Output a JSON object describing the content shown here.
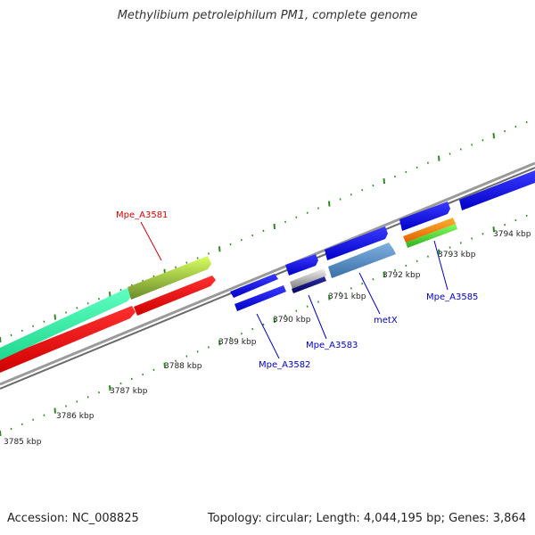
{
  "title": "Methylibium petroleiphilum PM1, complete genome",
  "accession": "Accession: NC_008825",
  "summary": "Topology: circular; Length: 4,044,195 bp; Genes: 3,864",
  "colors": {
    "backbone": "#8a8a8a",
    "tick": "#2e8b22",
    "forward_gene": "#0000ee",
    "reverse_gene": "#0000ee",
    "red_label": "#dd0000",
    "blue_label": "#0000cc"
  },
  "tick_labels": [
    "3785 kbp",
    "3786 kbp",
    "3787 kbp",
    "3788 kbp",
    "3789 kbp",
    "3790 kbp",
    "3791 kbp",
    "3792 kbp",
    "3793 kbp",
    "3794 kbp"
  ],
  "gene_labels": [
    {
      "text": "Mpe_A3581",
      "color": "#dd0000"
    },
    {
      "text": "Mpe_A3582",
      "color": "#0000cc"
    },
    {
      "text": "Mpe_A3583",
      "color": "#0000cc"
    },
    {
      "text": "metX",
      "color": "#0000cc"
    },
    {
      "text": "Mpe_A3585",
      "color": "#0000cc"
    }
  ]
}
